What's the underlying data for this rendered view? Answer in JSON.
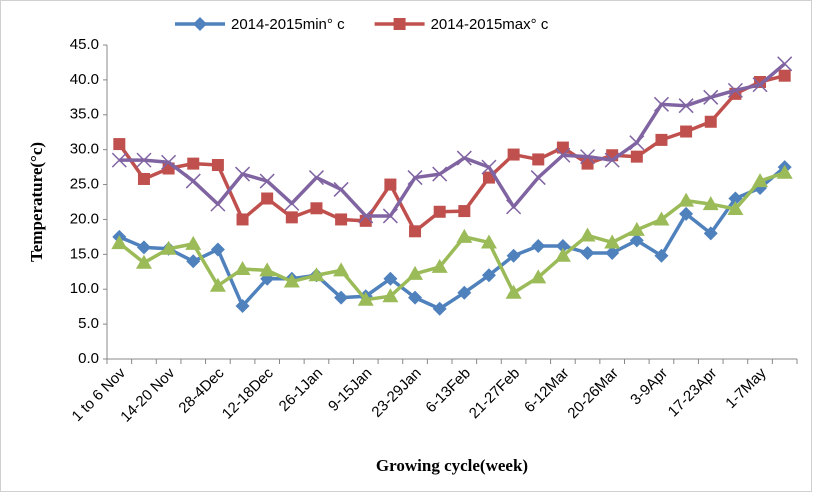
{
  "chart_data": {
    "type": "line",
    "y_label": "Temperature(°c)",
    "x_label": "Growing cycle(week)",
    "categories": [
      "1 to 6 Nov",
      null,
      "14-20 Nov",
      null,
      "28-4Dec",
      null,
      "12-18Dec",
      null,
      "26-1Jan",
      null,
      "9-15Jan",
      null,
      "23-29Jan",
      null,
      "6-13Feb",
      null,
      "21-27Feb",
      null,
      "6-12Mar",
      null,
      "20-26Mar",
      null,
      "3-9Apr",
      null,
      "17-23Apr",
      null,
      "1-7May",
      null
    ],
    "series": [
      {
        "name": "2014-2015min° c",
        "color": "#4f81bd",
        "marker": "diamond",
        "values": [
          17.5,
          16,
          15.8,
          14,
          15.7,
          7.6,
          11.5,
          11.5,
          12,
          8.8,
          9,
          11.5,
          8.8,
          7.2,
          9.5,
          12,
          14.8,
          16.2,
          16.2,
          15.2,
          15.2,
          17,
          14.8,
          20.8,
          18,
          23,
          24.5,
          27.5
        ]
      },
      {
        "name": "2014-2015max° c",
        "color": "#c0504d",
        "marker": "square",
        "values": [
          30.8,
          25.8,
          27.3,
          28,
          27.8,
          20,
          23,
          20.3,
          21.6,
          20,
          19.8,
          25,
          18.3,
          21.1,
          21.2,
          26,
          29.3,
          28.6,
          30.3,
          28,
          29.2,
          29,
          31.4,
          32.6,
          34,
          38,
          39.7,
          40.6
        ]
      },
      {
        "color": "#9bbb59",
        "marker": "triangle",
        "values": [
          16.6,
          13.8,
          15.8,
          16.5,
          10.5,
          12.9,
          12.7,
          11.1,
          12,
          12.7,
          8.5,
          9,
          12.2,
          13.2,
          17.5,
          16.7,
          9.5,
          11.7,
          14.8,
          17.7,
          16.7,
          18.5,
          20,
          22.7,
          22.2,
          21.5,
          25.5,
          26.7
        ]
      },
      {
        "color": "#8064a2",
        "marker": "x",
        "values": [
          28.5,
          28.5,
          28.2,
          25.5,
          22.2,
          26.5,
          25.5,
          22.3,
          26,
          24.3,
          20.5,
          20.5,
          26,
          26.5,
          28.8,
          27.5,
          21.8,
          26,
          29.2,
          29,
          28.5,
          31,
          36.5,
          36.3,
          37.5,
          38.5,
          39.3,
          42.3
        ]
      }
    ],
    "ylim": [
      0,
      45
    ],
    "yticks": [
      {
        "value": 0,
        "label": "0.0"
      },
      {
        "value": 5,
        "label": "5.0"
      },
      {
        "value": 10,
        "label": "10.0"
      },
      {
        "value": 15,
        "label": "15.0"
      },
      {
        "value": 20,
        "label": "20.0"
      },
      {
        "value": 25,
        "label": "25.0"
      },
      {
        "value": 30,
        "label": "30.0"
      },
      {
        "value": 35,
        "label": "35.0"
      },
      {
        "value": 40,
        "label": "40.0"
      },
      {
        "value": 45,
        "label": "45.0"
      }
    ],
    "legend": "top"
  }
}
